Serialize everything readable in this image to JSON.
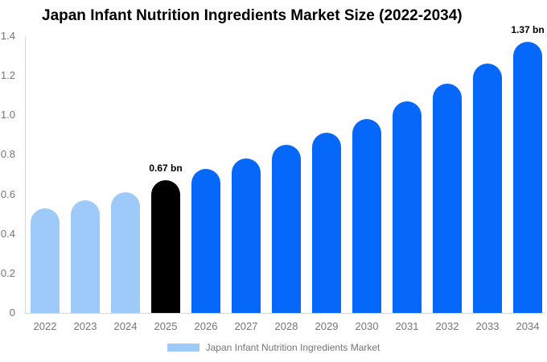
{
  "title": "Japan Infant Nutrition Ingredients Market Size (2022-2034)",
  "legend": {
    "label": "Japan Infant Nutrition Ingredients Market",
    "swatch_color": "#9ECAF9"
  },
  "annotations": [
    {
      "year": "2025",
      "text": "0.67 bn"
    },
    {
      "year": "2034",
      "text": "1.37 bn"
    }
  ],
  "colors": {
    "bar_light_blue": "#9ECAF9",
    "bar_blue": "#0667FB",
    "bar_black": "#000000",
    "axis_line": "#D8D8D8",
    "tick_text": "#757575",
    "background": "#FFFFFF"
  },
  "chart_data": {
    "type": "bar",
    "title": "Japan Infant Nutrition Ingredients Market Size (2022-2034)",
    "categories": [
      "2022",
      "2023",
      "2024",
      "2025",
      "2026",
      "2027",
      "2028",
      "2029",
      "2030",
      "2031",
      "2032",
      "2033",
      "2034"
    ],
    "values": [
      0.53,
      0.57,
      0.61,
      0.67,
      0.73,
      0.78,
      0.85,
      0.91,
      0.98,
      1.07,
      1.16,
      1.26,
      1.37
    ],
    "bar_colors": [
      "#9ECAF9",
      "#9ECAF9",
      "#9ECAF9",
      "#000000",
      "#0667FB",
      "#0667FB",
      "#0667FB",
      "#0667FB",
      "#0667FB",
      "#0667FB",
      "#0667FB",
      "#0667FB",
      "#0667FB"
    ],
    "unit": "bn",
    "xlabel": "",
    "ylabel": "",
    "ylim": [
      0,
      1.4
    ],
    "yticks": [
      "0",
      "0.2",
      "0.4",
      "0.6",
      "0.8",
      "1.0",
      "1.2",
      "1.4"
    ],
    "grid": false,
    "legend_position": "bottom",
    "legend_entries": [
      "Japan Infant Nutrition Ingredients Market"
    ]
  }
}
